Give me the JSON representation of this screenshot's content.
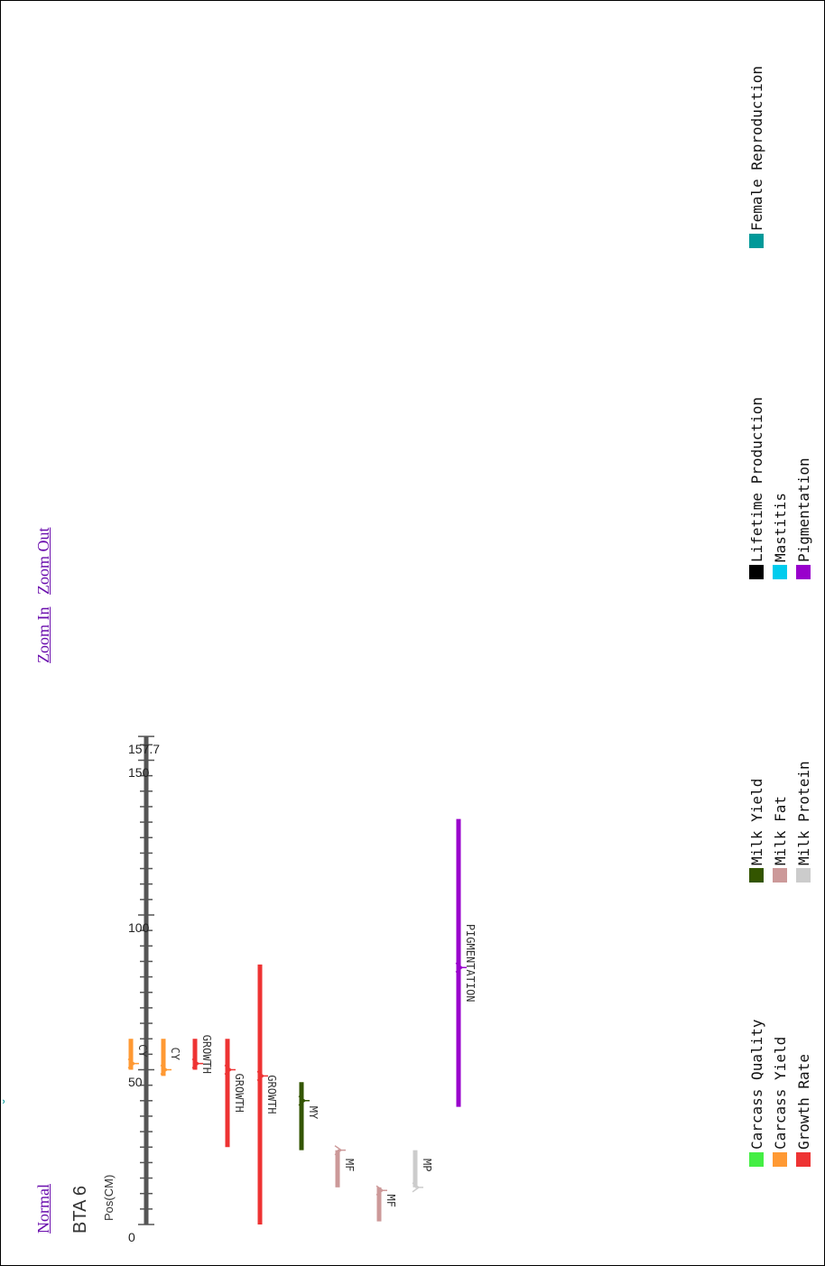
{
  "nav": {
    "normal_label": "Normal",
    "zoom_in_label": "Zoom In",
    "zoom_out_label": "Zoom Out"
  },
  "chromosome": {
    "name": "BTA 6",
    "axis_label": "Pos(CM)",
    "length_cm": 157.7,
    "tick_labels": [
      "0",
      "50",
      "100",
      "150",
      "157.7"
    ],
    "tick_values": [
      0,
      50,
      100,
      150,
      157.7
    ]
  },
  "chart_data": {
    "type": "qtl-map",
    "unit": "cM",
    "qtls": [
      {
        "label": "CY",
        "category": "Carcass Yield",
        "start": 50,
        "end": 60,
        "peak": 52
      },
      {
        "label": "CY",
        "category": "Carcass Yield",
        "start": 48,
        "end": 60,
        "peak": 50
      },
      {
        "label": "GROWTH",
        "category": "Growth Rate",
        "start": 50,
        "end": 60,
        "peak": 52
      },
      {
        "label": "GROWTH",
        "category": "Growth Rate",
        "start": 25,
        "end": 60,
        "peak": 50
      },
      {
        "label": "GROWTH",
        "category": "Growth Rate",
        "start": 0,
        "end": 84,
        "peak": 48
      },
      {
        "label": "MY",
        "category": "Milk Yield",
        "start": 24,
        "end": 46,
        "peak": 40
      },
      {
        "label": "MF",
        "category": "Milk Fat",
        "start": 12,
        "end": 24,
        "peak": 24
      },
      {
        "label": "MF",
        "category": "Milk Fat",
        "start": 1,
        "end": 12,
        "peak": 11
      },
      {
        "label": "MP",
        "category": "Milk Protein",
        "start": 12,
        "end": 24,
        "peak": 12
      },
      {
        "label": "PIGMENTATION",
        "category": "Pigmentation",
        "start": 38,
        "end": 131,
        "peak": 83
      }
    ]
  },
  "legend": [
    {
      "label": "Carcass Quality",
      "color": "#44ee44"
    },
    {
      "label": "Carcass Yield",
      "color": "#ff9933"
    },
    {
      "label": "Growth Rate",
      "color": "#ee3333"
    },
    {
      "label": "Milk Yield",
      "color": "#335500"
    },
    {
      "label": "Milk Fat",
      "color": "#cc9999"
    },
    {
      "label": "Milk Protein",
      "color": "#cccccc"
    },
    {
      "label": "Lifetime Production",
      "color": "#000000"
    },
    {
      "label": "Mastitis",
      "color": "#00ccee"
    },
    {
      "label": "Pigmentation",
      "color": "#9900cc"
    },
    {
      "label": "Female Reproduction",
      "color": "#009999"
    }
  ]
}
